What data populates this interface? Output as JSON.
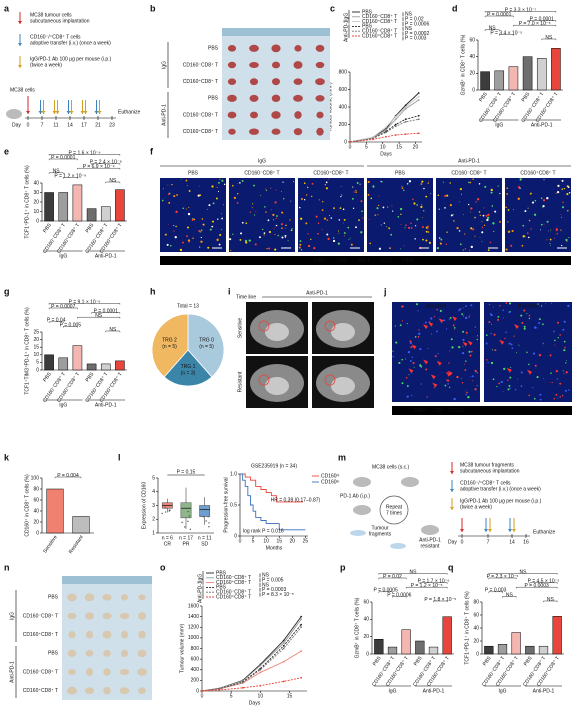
{
  "figure": {
    "panel_labels": [
      "a",
      "b",
      "c",
      "d",
      "e",
      "f",
      "g",
      "h",
      "i",
      "j",
      "k",
      "l",
      "m",
      "n",
      "o",
      "p",
      "q"
    ],
    "a": {
      "implant": [
        "MC38 tumour cells",
        "subcutaneous implantation"
      ],
      "transfer": [
        "CD160⁻/⁺CD8⁺ T cells",
        "adoptive transfer (i.v.) (once a week)"
      ],
      "ab": [
        "IgG/PD-1 Ab 100 μg per mouse (i.p.)",
        "(twice a week)"
      ],
      "cells": "MC38 cells",
      "day": "Day",
      "days": [
        "0",
        "7",
        "11",
        "14",
        "17",
        "21",
        "23"
      ],
      "end": "Euthanize"
    },
    "b": {
      "rows": [
        "PBS",
        "CD160⁻CD8⁺ T",
        "CD160⁺CD8⁺ T",
        "PBS",
        "CD160⁻CD8⁺ T",
        "CD160⁺CD8⁺ T"
      ],
      "groups": [
        "IgG",
        "Anti-PD-1"
      ]
    },
    "f": {
      "groups": [
        "IgG",
        "Anti-PD-1"
      ],
      "titles": [
        "PBS",
        "CD160⁻CD8⁺ T",
        "CD160⁺CD8⁺ T",
        "PBS",
        "CD160⁻CD8⁺ T",
        "CD160⁺CD8⁺ T"
      ],
      "channels": [
        "DAPI",
        "CD8",
        "PD-1",
        "TCF1",
        "TIM3"
      ]
    },
    "i": {
      "timeline": "Time line",
      "drug": "Anti-PD-1",
      "rows": [
        "Sensitive",
        "Resistant"
      ]
    },
    "j": {
      "titles": [
        "Sensitive",
        "Resistant"
      ],
      "channels": [
        "DAPI",
        "CD8",
        "CD160"
      ]
    },
    "m": {
      "cells": "MC38 cells (s.c.)",
      "ab": "PD-1 Ab (i.p.)",
      "repeat": [
        "Repeat",
        "7 times"
      ],
      "fragments": [
        "Tumour",
        "fragments"
      ],
      "resistant": [
        "Anti-PD-1",
        "resistant"
      ],
      "legend": {
        "implant": [
          "MC38 tumour fragments",
          "subcutaneous implantation"
        ],
        "transfer": [
          "CD160⁻/⁺CD8⁺ T cells",
          "adoptive transfer (i.v.) (once a week)"
        ],
        "ab": [
          "IgG/PD-1 Ab 100 μg per mouse (i.p.)",
          "(twice a week)"
        ]
      },
      "day": "Day",
      "days": [
        "0",
        "7",
        "14",
        "16"
      ],
      "end": "Euthanize"
    },
    "n": {
      "rows": [
        "PBS",
        "CD160⁻CD8⁺ T",
        "CD160⁺CD8⁺ T",
        "PBS",
        "CD160⁻CD8⁺ T",
        "CD160⁺CD8⁺ T"
      ],
      "groups": [
        "IgG",
        "Anti-PD-1"
      ]
    }
  },
  "chart_data": [
    {
      "type": "line",
      "y_label": "Tumour volume (mm³)",
      "x_label": "Days",
      "x": [
        0,
        7,
        11,
        14,
        17,
        21
      ],
      "xlim": [
        0,
        22
      ],
      "xticks": [
        0,
        5,
        10,
        15,
        20
      ],
      "ylim": [
        0,
        800
      ],
      "yticks": [
        0,
        200,
        400,
        600,
        800
      ],
      "legend_groups": [
        "IgG",
        "Anti-PD-1"
      ],
      "series": [
        {
          "name": "PBS",
          "color": "#222222",
          "dash": false,
          "values": [
            0,
            50,
            150,
            300,
            420,
            560
          ]
        },
        {
          "name": "CD160⁻CD8⁺ T",
          "color": "#9a9a9a",
          "dash": false,
          "values": [
            0,
            45,
            140,
            260,
            380,
            480
          ]
        },
        {
          "name": "CD160⁺CD8⁺ T",
          "color": "#c8c8c8",
          "dash": false,
          "values": [
            0,
            55,
            170,
            290,
            400,
            520
          ]
        },
        {
          "name": "PBS",
          "color": "#222222",
          "dash": true,
          "values": [
            0,
            40,
            120,
            200,
            260,
            300
          ]
        },
        {
          "name": "CD160⁻CD8⁺ T",
          "color": "#777777",
          "dash": true,
          "values": [
            0,
            40,
            110,
            180,
            230,
            260
          ]
        },
        {
          "name": "CD160⁺CD8⁺ T",
          "color": "#e8463c",
          "dash": true,
          "values": [
            0,
            30,
            60,
            80,
            90,
            100
          ]
        }
      ],
      "annotations": [
        "NS",
        "P = 0.02",
        "P = 0.0006",
        "NS",
        "P = 0.0002",
        "P = 0.003"
      ]
    },
    {
      "type": "bar",
      "y_label": "GzmB⁺ in CD8⁺ T cells (%)",
      "categories": [
        "PBS",
        "CD160⁻CD8⁺ T",
        "CD160⁺CD8⁺ T",
        "PBS",
        "CD160⁻CD8⁺ T",
        "CD160⁺CD8⁺ T"
      ],
      "groups": [
        "IgG",
        "Anti-PD-1"
      ],
      "colors": [
        "#3c3c3c",
        "#9e9e9e",
        "#f4b6b0",
        "#6e6e6e",
        "#d0d0d0",
        "#e8463c"
      ],
      "values": [
        22,
        23,
        28,
        40,
        38,
        50
      ],
      "ylim": [
        0,
        60
      ],
      "yticks": [
        0,
        20,
        40,
        60
      ],
      "annotations": [
        "P = 3.3 × 10⁻⁷",
        "P = 0.0001",
        "P = 0.0001",
        "P = 7.0 × 10⁻⁵",
        "NS",
        "P = 3.4 × 10⁻⁵",
        "NS"
      ]
    },
    {
      "type": "bar",
      "y_label": "TCF1⁺PD-1⁺ in CD8⁺ T cells (%)",
      "categories": [
        "PBS",
        "CD160⁻CD8⁺ T",
        "CD160⁺CD8⁺ T",
        "PBS",
        "CD160⁻CD8⁺ T",
        "CD160⁺CD8⁺ T"
      ],
      "groups": [
        "IgG",
        "Anti-PD-1"
      ],
      "colors": [
        "#3c3c3c",
        "#9e9e9e",
        "#f4b6b0",
        "#6e6e6e",
        "#d0d0d0",
        "#e8463c"
      ],
      "values": [
        30,
        30,
        38,
        13,
        15,
        33
      ],
      "ylim": [
        0,
        40
      ],
      "yticks": [
        0,
        10,
        20,
        30,
        40
      ],
      "annotations": [
        "P = 1.6 × 10⁻⁹",
        "P = 0.0001",
        "P = 2.4 × 10⁻⁸",
        "P = 6.9 × 10⁻⁹",
        "NS",
        "P = 1.2 × 10⁻⁹",
        "NS"
      ]
    },
    {
      "type": "bar",
      "y_label": "TCF1⁺TIM3⁺PD-1⁺ in CD8⁺ T cells (%)",
      "categories": [
        "PBS",
        "CD160⁻CD8⁺ T",
        "CD160⁺CD8⁺ T",
        "PBS",
        "CD160⁻CD8⁺ T",
        "CD160⁺CD8⁺ T"
      ],
      "groups": [
        "IgG",
        "Anti-PD-1"
      ],
      "colors": [
        "#3c3c3c",
        "#9e9e9e",
        "#f4b6b0",
        "#6e6e6e",
        "#d0d0d0",
        "#e8463c"
      ],
      "values": [
        10,
        8,
        16,
        4,
        4,
        6
      ],
      "ylim": [
        0,
        25
      ],
      "yticks": [
        0,
        5,
        10,
        15,
        20,
        25
      ],
      "annotations": [
        "P = 9.1 × 10⁻⁶",
        "P = 0.0007",
        "P = 0.0001",
        "NS",
        "P = 0.04",
        "P = 0.005",
        "NS"
      ]
    },
    {
      "type": "pie",
      "title": "Total = 13",
      "categories": [
        "TRG 0",
        "TRG 1",
        "TRG 2"
      ],
      "values": [
        5,
        3,
        5
      ],
      "value_labels": [
        "(n = 5)",
        "(n = 3)",
        "(n = 5)"
      ],
      "colors": [
        "#a9c9dc",
        "#3b86a8",
        "#f0b860"
      ]
    },
    {
      "type": "bar",
      "y_label": "CD160⁺ in CD8⁺ T cells (%)",
      "categories": [
        "Sensitive",
        "Resistant"
      ],
      "colors": [
        "#f08070",
        "#bdbdbd"
      ],
      "values": [
        80,
        30
      ],
      "ylim": [
        0,
        100
      ],
      "yticks": [
        0,
        20,
        40,
        60,
        80,
        100
      ],
      "annotations": [
        "P = 0.004"
      ]
    },
    {
      "type": "box",
      "y_label": "Expression of CD160",
      "categories": [
        "CR",
        "PR",
        "SD"
      ],
      "n_labels": [
        "n = 6",
        "n = 17",
        "n = 11"
      ],
      "colors": [
        "#e8837a",
        "#8fb58a",
        "#6f9fd0"
      ],
      "stats": [
        [
          2.5,
          2.8,
          3.0,
          3.2,
          3.5
        ],
        [
          1.3,
          2.1,
          2.8,
          3.2,
          4.3
        ],
        [
          1.6,
          2.2,
          2.7,
          3.0,
          3.6
        ]
      ],
      "ylim": [
        1,
        5
      ],
      "yticks": [
        1,
        2,
        3,
        4,
        5
      ],
      "annotations": [
        "P = 0.15"
      ]
    },
    {
      "type": "step",
      "title": "GSE235919 (n = 34)",
      "y_label": "Progression-free survival",
      "x_label": "Months",
      "xlim": [
        0,
        26
      ],
      "xticks": [
        0,
        5,
        10,
        15,
        20,
        25
      ],
      "ylim": [
        0,
        1
      ],
      "yticks": [
        0,
        0.5,
        {
          "value": 1,
          "label": "1.0"
        }
      ],
      "series": [
        {
          "name": "CD160ʰⁱ",
          "color": "#e8463c",
          "x": [
            0,
            2,
            4,
            6,
            8,
            10,
            12,
            14,
            24
          ],
          "values": [
            1,
            0.95,
            0.9,
            0.8,
            0.75,
            0.7,
            0.65,
            0.55,
            0.55
          ]
        },
        {
          "name": "CD160ˡᵒ",
          "color": "#3b6fc0",
          "x": [
            0,
            1,
            2,
            3,
            4,
            5,
            6,
            8,
            10,
            15,
            25
          ],
          "values": [
            1,
            0.9,
            0.8,
            0.65,
            0.5,
            0.4,
            0.3,
            0.25,
            0.2,
            0.1,
            0.1
          ]
        }
      ],
      "annotations": [
        "HR = 0.39 (0.17–0.87)",
        "log rank P = 0.016"
      ]
    },
    {
      "type": "line",
      "y_label": "Tumour volume (mm³)",
      "x_label": "Days",
      "x": [
        0,
        3,
        7,
        10,
        14,
        17
      ],
      "xlim": [
        0,
        18
      ],
      "xticks": [
        0,
        5,
        10,
        15
      ],
      "ylim": [
        0,
        1600
      ],
      "yticks": [
        0,
        200,
        400,
        600,
        800,
        1000,
        1200,
        1400,
        1600
      ],
      "legend_groups": [
        "IgG",
        "Anti-PD-1"
      ],
      "series": [
        {
          "name": "PBS",
          "color": "#222222",
          "dash": false,
          "values": [
            0,
            50,
            200,
            500,
            950,
            1400
          ]
        },
        {
          "name": "CD160⁻CD8⁺ T",
          "color": "#9a9a9a",
          "dash": false,
          "values": [
            0,
            50,
            190,
            480,
            900,
            1350
          ]
        },
        {
          "name": "CD160⁺CD8⁺ T",
          "color": "#f08070",
          "dash": false,
          "values": [
            0,
            40,
            150,
            350,
            550,
            750
          ]
        },
        {
          "name": "PBS",
          "color": "#222222",
          "dash": true,
          "values": [
            0,
            45,
            170,
            420,
            850,
            1250
          ]
        },
        {
          "name": "CD160⁻CD8⁺ T",
          "color": "#777777",
          "dash": true,
          "values": [
            0,
            40,
            160,
            400,
            800,
            1200
          ]
        },
        {
          "name": "CD160⁺CD8⁺ T",
          "color": "#e8463c",
          "dash": true,
          "values": [
            0,
            20,
            60,
            100,
            180,
            250
          ]
        }
      ],
      "annotations": [
        "NS",
        "P = 0.005",
        "NS",
        "P = 0.0003",
        "P = 8.3 × 10⁻⁵"
      ]
    },
    {
      "type": "bar",
      "y_label": "GzmB⁺ in CD8⁺ T cells (%)",
      "categories": [
        "PBS",
        "CD160⁻CD8⁺ T",
        "CD160⁺CD8⁺ T",
        "PBS",
        "CD160⁻CD8⁺ T",
        "CD160⁺CD8⁺ T"
      ],
      "groups": [
        "IgG",
        "Anti-PD-1"
      ],
      "colors": [
        "#3c3c3c",
        "#9e9e9e",
        "#f4b6b0",
        "#6e6e6e",
        "#d0d0d0",
        "#e8463c"
      ],
      "values": [
        17,
        8,
        28,
        15,
        8,
        43
      ],
      "ylim": [
        0,
        60
      ],
      "yticks": [
        0,
        20,
        40,
        60
      ],
      "annotations": [
        "NS",
        "P = 0.02",
        "P = 1.7 × 10⁻⁶",
        "P = 1.2 × 10⁻⁶",
        "P = 0.0005",
        "P = 0.0006",
        "P = 1.8 × 10⁻⁵"
      ]
    },
    {
      "type": "bar",
      "y_label": "TCF1⁺PD-1⁺ in CD8⁺ T cells (%)",
      "categories": [
        "PBS",
        "CD160⁻CD8⁺ T",
        "CD160⁺CD8⁺ T",
        "PBS",
        "CD160⁻CD8⁺ T",
        "CD160⁺CD8⁺ T"
      ],
      "groups": [
        "IgG",
        "Anti-PD-1"
      ],
      "colors": [
        "#3c3c3c",
        "#9e9e9e",
        "#f4b6b0",
        "#6e6e6e",
        "#d0d0d0",
        "#e8463c"
      ],
      "values": [
        12,
        15,
        33,
        12,
        12,
        58
      ],
      "ylim": [
        0,
        80
      ],
      "yticks": [
        0,
        20,
        40,
        60,
        80
      ],
      "annotations": [
        "NS",
        "P = 2.3 × 10⁻⁵",
        "P = 4.5 × 10⁻⁵",
        "P = 0.0003",
        "P = 0.003",
        "NS",
        "NS"
      ]
    }
  ]
}
